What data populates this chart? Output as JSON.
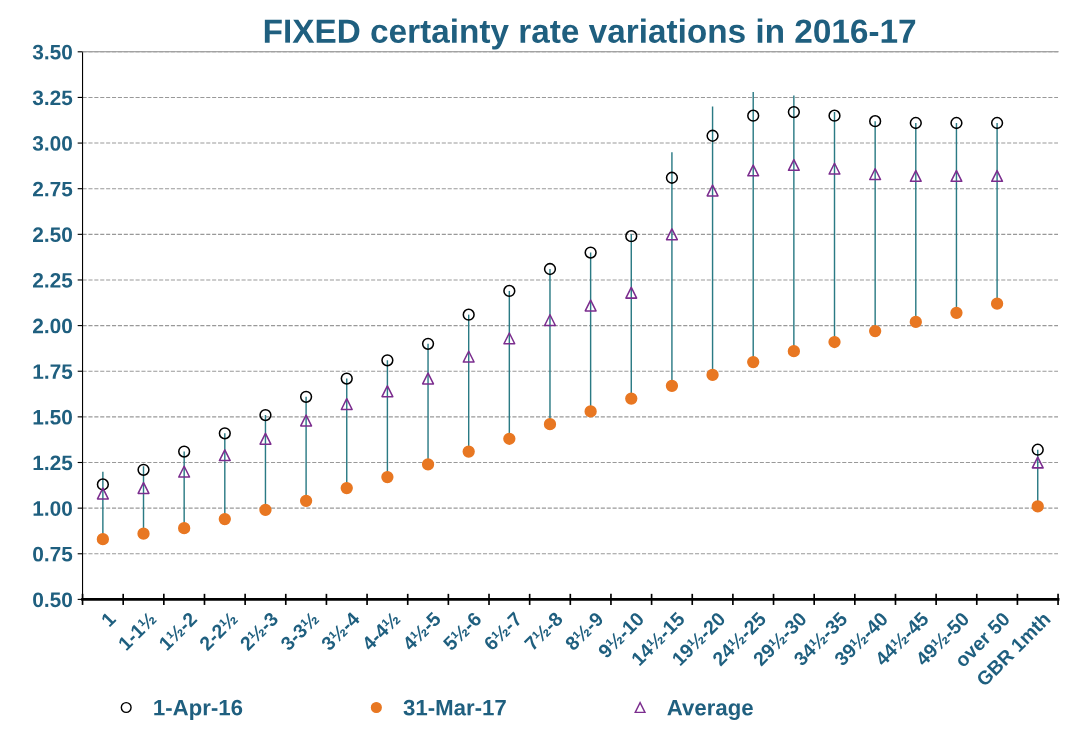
{
  "chart_data": {
    "type": "scatter",
    "title": "FIXED certainty rate variations in 2016-17",
    "categories": [
      "1",
      "1-1½",
      "1½-2",
      "2-2½",
      "2½-3",
      "3-3½",
      "3½-4",
      "4-4½",
      "4½-5",
      "5½-6",
      "6½-7",
      "7½-8",
      "8½-9",
      "9½-10",
      "14½-15",
      "19½-20",
      "24½-25",
      "29½-30",
      "34½-35",
      "39½-40",
      "44½-45",
      "49½-50",
      "over 50",
      "GBR 1mth"
    ],
    "series": [
      {
        "type": "bar",
        "color": "#2a7a84",
        "base": [
          0.83,
          0.86,
          0.89,
          0.94,
          0.99,
          1.04,
          1.11,
          1.17,
          1.24,
          1.31,
          1.38,
          1.46,
          1.53,
          1.6,
          1.67,
          1.73,
          1.8,
          1.86,
          1.91,
          1.97,
          2.02,
          2.07,
          2.12,
          1.01
        ],
        "values": [
          0.37,
          0.37,
          0.42,
          0.47,
          0.52,
          0.57,
          0.6,
          0.64,
          0.66,
          0.75,
          0.81,
          0.85,
          0.87,
          0.9,
          1.28,
          1.47,
          1.48,
          1.4,
          1.26,
          1.15,
          1.09,
          1.04,
          0.99,
          0.31
        ]
      },
      {
        "name": "1-Apr-16",
        "marker": "circle",
        "color": "#000000",
        "values": [
          1.13,
          1.21,
          1.31,
          1.41,
          1.51,
          1.61,
          1.71,
          1.81,
          1.9,
          2.06,
          2.19,
          2.31,
          2.4,
          2.49,
          2.81,
          3.04,
          3.15,
          3.17,
          3.15,
          3.12,
          3.11,
          3.11,
          3.11,
          1.32
        ]
      },
      {
        "name": "31-Mar-17",
        "marker": "circle",
        "color": "#e87722",
        "values": [
          0.83,
          0.86,
          0.89,
          0.94,
          0.99,
          1.04,
          1.11,
          1.17,
          1.24,
          1.31,
          1.38,
          1.46,
          1.53,
          1.6,
          1.67,
          1.73,
          1.8,
          1.86,
          1.91,
          1.97,
          2.02,
          2.07,
          2.12,
          1.01
        ]
      },
      {
        "name": "Average",
        "marker": "triangle",
        "color": "#7b2d8e",
        "values": [
          1.08,
          1.11,
          1.2,
          1.29,
          1.38,
          1.48,
          1.57,
          1.64,
          1.71,
          1.83,
          1.93,
          2.03,
          2.11,
          2.18,
          2.5,
          2.74,
          2.85,
          2.88,
          2.86,
          2.83,
          2.82,
          2.82,
          2.82,
          1.25
        ]
      }
    ],
    "ylim": [
      0.5,
      3.5
    ],
    "yticks": [
      {
        "value": 0.5,
        "label": "0.50"
      },
      {
        "value": 0.75,
        "label": "0.75"
      },
      {
        "value": 1.0,
        "label": "1.00"
      },
      {
        "value": 1.25,
        "label": "1.25"
      },
      {
        "value": 1.5,
        "label": "1.50"
      },
      {
        "value": 1.75,
        "label": "1.75"
      },
      {
        "value": 2.0,
        "label": "2.00"
      },
      {
        "value": 2.25,
        "label": "2.25"
      },
      {
        "value": 2.5,
        "label": "2.50"
      },
      {
        "value": 2.75,
        "label": "2.75"
      },
      {
        "value": 3.0,
        "label": "3.00"
      },
      {
        "value": 3.25,
        "label": "3.25"
      },
      {
        "value": 3.5,
        "label": "3.50"
      }
    ],
    "grid": "y",
    "legend": "bottom"
  }
}
